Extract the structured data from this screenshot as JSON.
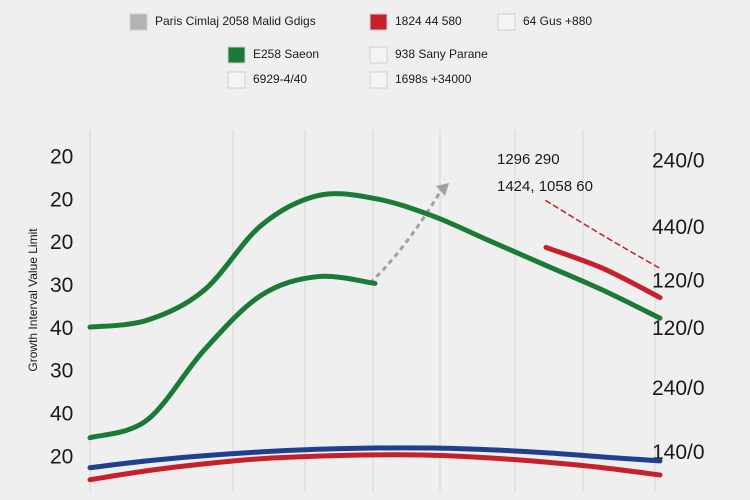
{
  "chart_data": {
    "type": "line",
    "y_label": "Growth Interval Value Limit",
    "legend": [
      {
        "label": "Paris Cimlaj 2058 Malid Gdigs",
        "color": "#b3b3b3"
      },
      {
        "label": "1824 44 580",
        "color": "#c8202a"
      },
      {
        "label": "64 Gus +880",
        "color": "#f4f4f4"
      },
      {
        "label": "E258 Saeon",
        "color": "#1b7a35"
      },
      {
        "label": "938 Sany Parane",
        "color": "#f4f4f4"
      },
      {
        "label": "6929-4/40",
        "color": "#f4f4f4"
      },
      {
        "label": "1698s +34000",
        "color": "#f4f4f4"
      }
    ],
    "annotations": [
      "1296 290",
      "1424, 1058 60"
    ],
    "x": [
      0,
      1,
      2,
      3,
      4,
      5,
      6,
      7,
      8,
      9,
      10
    ],
    "xlim": [
      0,
      10
    ],
    "ylim": [
      0.25,
      8.65
    ],
    "yticks": [
      {
        "value": 8,
        "label": "20"
      },
      {
        "value": 7,
        "label": "20"
      },
      {
        "value": 6,
        "label": "20"
      },
      {
        "value": 5,
        "label": "30"
      },
      {
        "value": 4,
        "label": "40"
      },
      {
        "value": 3,
        "label": "30"
      },
      {
        "value": 2,
        "label": "40"
      },
      {
        "value": 1,
        "label": "20"
      }
    ],
    "y2lim": [
      0.25,
      8.65
    ],
    "y2ticks": [
      {
        "value": 7.9,
        "label": "240/0"
      },
      {
        "value": 6.35,
        "label": "440/0"
      },
      {
        "value": 5.1,
        "label": "120/0"
      },
      {
        "value": 4,
        "label": "120/0"
      },
      {
        "value": 2.6,
        "label": "240/0"
      },
      {
        "value": 1.1,
        "label": "140/0"
      }
    ],
    "series": [
      {
        "color": "#1b7a35",
        "values": [
          4.05,
          4.21,
          4.91,
          6.42,
          7.12,
          7.05,
          6.65,
          6.07,
          5.49,
          4.91,
          4.26
        ]
      },
      {
        "color": "#1b7a35",
        "values": [
          1.47,
          1.88,
          3.51,
          4.79,
          5.23,
          5.07,
          null,
          null,
          null,
          null,
          null
        ]
      },
      {
        "color": "#c8202a",
        "values": [
          null,
          null,
          null,
          null,
          null,
          null,
          null,
          null,
          5.91,
          5.42,
          4.74
        ]
      },
      {
        "color": "#c8202a",
        "dashed": true,
        "values": [
          null,
          null,
          null,
          null,
          null,
          null,
          null,
          null,
          7.0,
          6.19,
          5.42
        ]
      },
      {
        "color": "#1f3f8f",
        "values": [
          0.77,
          0.93,
          1.05,
          1.14,
          1.2,
          1.23,
          1.23,
          1.19,
          1.12,
          1.02,
          0.93
        ]
      },
      {
        "color": "#c8202a",
        "values": [
          0.49,
          0.7,
          0.86,
          0.98,
          1.04,
          1.07,
          1.06,
          1.0,
          0.9,
          0.77,
          0.6
        ]
      }
    ]
  }
}
